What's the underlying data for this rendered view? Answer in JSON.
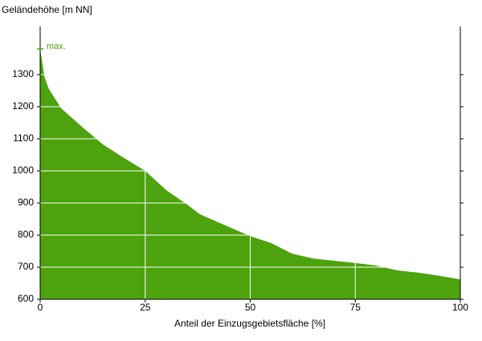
{
  "chart_data": {
    "type": "area",
    "y_label": "Geländehöhe [m NN]",
    "x_label": "Anteil der Einzugsgebietsfläche [%]",
    "annotation": "max.",
    "color": "#4ca30d",
    "x": [
      0,
      1,
      2,
      5,
      10,
      15,
      20,
      25,
      30,
      35,
      38,
      45,
      50,
      55,
      60,
      65,
      70,
      75,
      80,
      85,
      90,
      95,
      100
    ],
    "values": [
      1380,
      1295,
      1257,
      1195,
      1137,
      1082,
      1040,
      1000,
      940,
      895,
      865,
      825,
      797,
      775,
      742,
      727,
      720,
      713,
      705,
      690,
      683,
      673,
      662
    ],
    "xlim": [
      0,
      100
    ],
    "xticks": [
      0,
      25,
      50,
      75,
      100
    ],
    "ylim": [
      600,
      1450
    ],
    "yticks": [
      600,
      700,
      800,
      900,
      1000,
      1100,
      1200,
      1300
    ],
    "grid": true
  }
}
